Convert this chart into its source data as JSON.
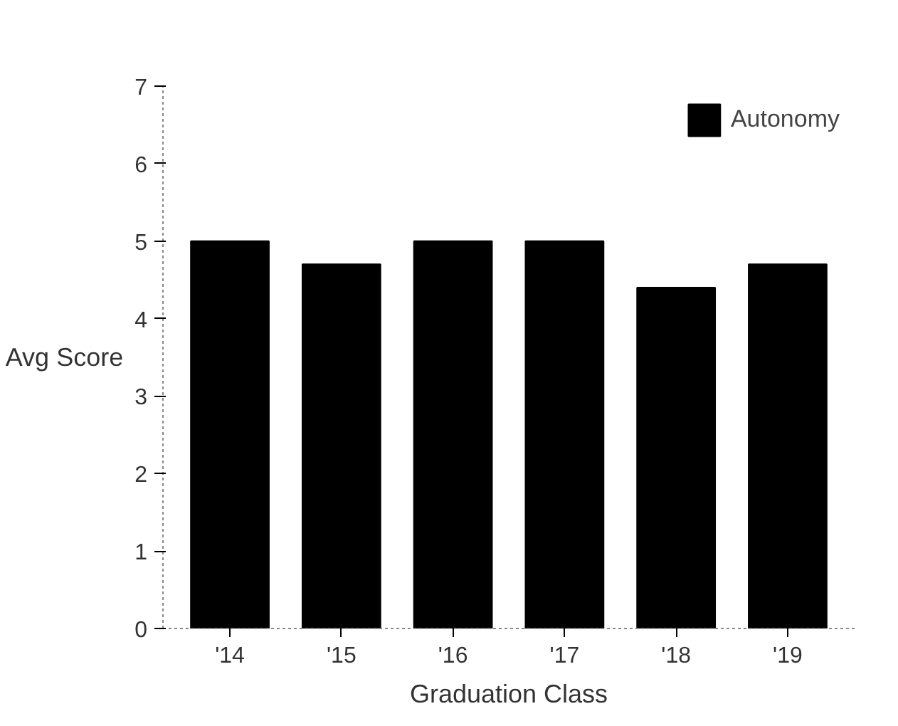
{
  "chart_data": {
    "type": "bar",
    "xlabel": "Graduation Class",
    "ylabel": "Avg Score",
    "categories": [
      "'14",
      "'15",
      "'16",
      "'17",
      "'18",
      "'19"
    ],
    "series": [
      {
        "name": "Autonomy",
        "color": "#000000",
        "values": [
          5.0,
          4.7,
          5.0,
          5.0,
          4.4,
          4.7
        ]
      }
    ],
    "ylim": [
      0,
      7
    ],
    "yticks": [
      0,
      1,
      2,
      3,
      4,
      5,
      6,
      7
    ],
    "grid": false,
    "legend": "top right"
  }
}
